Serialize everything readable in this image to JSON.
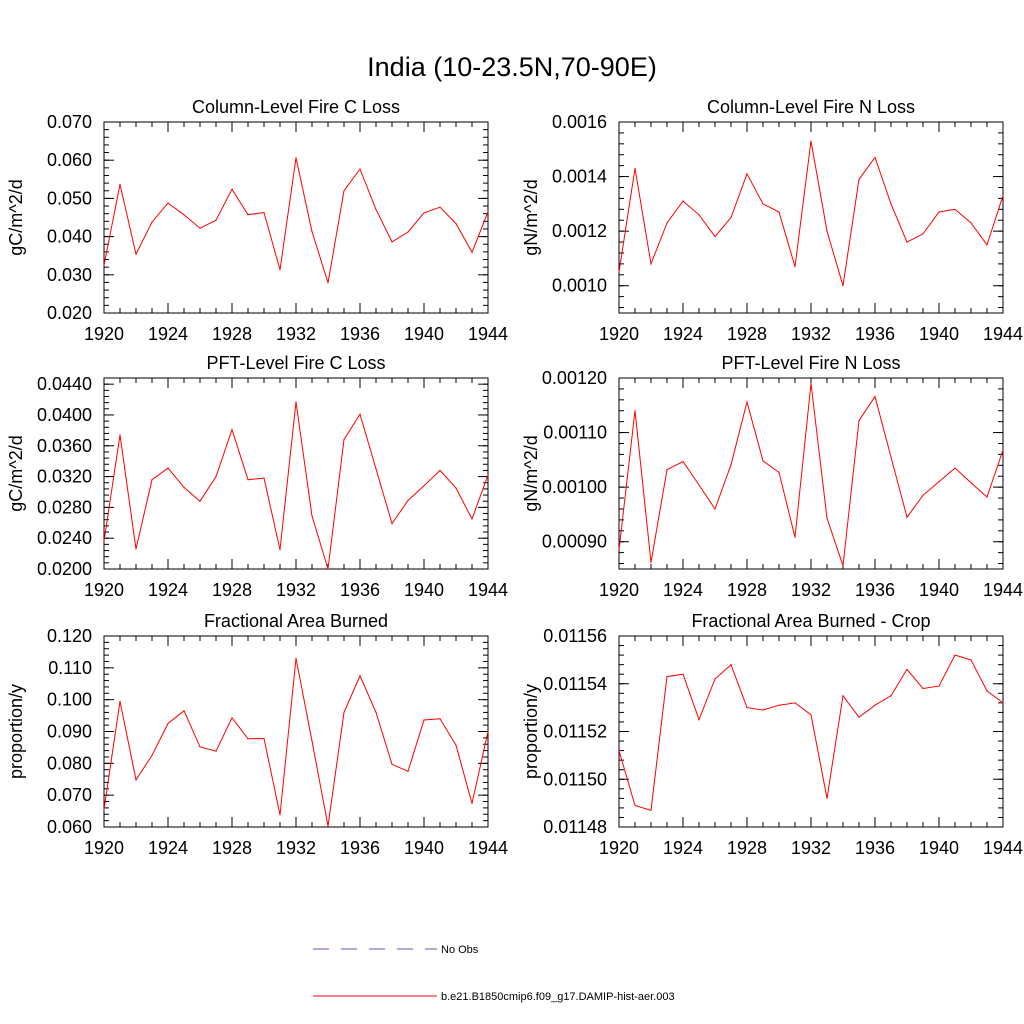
{
  "title": "India (10-23.5N,70-90E)",
  "colors": {
    "model": "#ff0000",
    "obs": "#5a5ab8",
    "frame": "#000000"
  },
  "legend": {
    "obs_label": "No Obs",
    "model_label": "b.e21.B1850cmip6.f09_g17.DAMIP-hist-aer.003"
  },
  "chart_data": [
    {
      "type": "line",
      "title": "Column-Level Fire C Loss",
      "ylabel": "gC/m^2/d",
      "xlim": [
        1920,
        1944
      ],
      "ylim": [
        0.02,
        0.07
      ],
      "xticks": [
        1920,
        1924,
        1928,
        1932,
        1936,
        1940,
        1944
      ],
      "yticks": [
        0.02,
        0.03,
        0.04,
        0.05,
        0.06,
        0.07
      ],
      "ytick_labels": [
        "0.020",
        "0.030",
        "0.040",
        "0.050",
        "0.060",
        "0.070"
      ],
      "x": [
        1920,
        1921,
        1922,
        1923,
        1924,
        1925,
        1926,
        1927,
        1928,
        1929,
        1930,
        1931,
        1932,
        1933,
        1934,
        1935,
        1936,
        1937,
        1938,
        1939,
        1940,
        1941,
        1942,
        1943,
        1944
      ],
      "series": [
        {
          "name": "b.e21.B1850cmip6.f09_g17.DAMIP-hist-aer.003",
          "values": [
            0.0325,
            0.0537,
            0.0354,
            0.0438,
            0.0488,
            0.0457,
            0.0422,
            0.0443,
            0.0524,
            0.0457,
            0.0463,
            0.0313,
            0.0606,
            0.0413,
            0.0279,
            0.052,
            0.0577,
            0.0471,
            0.0386,
            0.0412,
            0.0462,
            0.0477,
            0.0434,
            0.0359,
            0.0465
          ]
        }
      ]
    },
    {
      "type": "line",
      "title": "Column-Level Fire N Loss",
      "ylabel": "gN/m^2/d",
      "xlim": [
        1920,
        1944
      ],
      "ylim": [
        0.0009,
        0.0016
      ],
      "xticks": [
        1920,
        1924,
        1928,
        1932,
        1936,
        1940,
        1944
      ],
      "yticks": [
        0.001,
        0.0012,
        0.0014,
        0.0016
      ],
      "ytick_labels": [
        "0.0010",
        "0.0012",
        "0.0014",
        "0.0016"
      ],
      "x": [
        1920,
        1921,
        1922,
        1923,
        1924,
        1925,
        1926,
        1927,
        1928,
        1929,
        1930,
        1931,
        1932,
        1933,
        1934,
        1935,
        1936,
        1937,
        1938,
        1939,
        1940,
        1941,
        1942,
        1943,
        1944
      ],
      "series": [
        {
          "name": "b.e21.B1850cmip6.f09_g17.DAMIP-hist-aer.003",
          "values": [
            0.00105,
            0.00143,
            0.00108,
            0.00123,
            0.00131,
            0.00126,
            0.00118,
            0.00125,
            0.00141,
            0.0013,
            0.00127,
            0.00107,
            0.00153,
            0.0012,
            0.001,
            0.00139,
            0.00147,
            0.0013,
            0.00116,
            0.00119,
            0.00127,
            0.00128,
            0.00123,
            0.00115,
            0.00133
          ]
        }
      ]
    },
    {
      "type": "line",
      "title": "PFT-Level Fire C Loss",
      "ylabel": "gC/m^2/d",
      "xlim": [
        1920,
        1944
      ],
      "ylim": [
        0.02,
        0.0448
      ],
      "xticks": [
        1920,
        1924,
        1928,
        1932,
        1936,
        1940,
        1944
      ],
      "yticks": [
        0.02,
        0.024,
        0.028,
        0.032,
        0.036,
        0.04,
        0.044
      ],
      "ytick_labels": [
        "0.0200",
        "0.0240",
        "0.0280",
        "0.0320",
        "0.0360",
        "0.0400",
        "0.0440"
      ],
      "x": [
        1920,
        1921,
        1922,
        1923,
        1924,
        1925,
        1926,
        1927,
        1928,
        1929,
        1930,
        1931,
        1932,
        1933,
        1934,
        1935,
        1936,
        1937,
        1938,
        1939,
        1940,
        1941,
        1942,
        1943,
        1944
      ],
      "series": [
        {
          "name": "b.e21.B1850cmip6.f09_g17.DAMIP-hist-aer.003",
          "values": [
            0.0236,
            0.0374,
            0.0226,
            0.0316,
            0.0331,
            0.0306,
            0.0288,
            0.032,
            0.0381,
            0.0316,
            0.0318,
            0.0225,
            0.0417,
            0.0269,
            0.02,
            0.0368,
            0.0401,
            0.033,
            0.0259,
            0.0289,
            0.0308,
            0.0328,
            0.0305,
            0.0265,
            0.0322
          ]
        }
      ]
    },
    {
      "type": "line",
      "title": "PFT-Level Fire N Loss",
      "ylabel": "gN/m^2/d",
      "xlim": [
        1920,
        1944
      ],
      "ylim": [
        0.00085,
        0.0012
      ],
      "xticks": [
        1920,
        1924,
        1928,
        1932,
        1936,
        1940,
        1944
      ],
      "yticks": [
        0.0009,
        0.001,
        0.0011,
        0.0012
      ],
      "ytick_labels": [
        "0.00090",
        "0.00100",
        "0.00110",
        "0.00120"
      ],
      "x": [
        1920,
        1921,
        1922,
        1923,
        1924,
        1925,
        1926,
        1927,
        1928,
        1929,
        1930,
        1931,
        1932,
        1933,
        1934,
        1935,
        1936,
        1937,
        1938,
        1939,
        1940,
        1941,
        1942,
        1943,
        1944
      ],
      "series": [
        {
          "name": "b.e21.B1850cmip6.f09_g17.DAMIP-hist-aer.003",
          "values": [
            0.000885,
            0.00114,
            0.000862,
            0.001032,
            0.001047,
            0.001004,
            0.00096,
            0.001041,
            0.001156,
            0.001048,
            0.001027,
            0.000908,
            0.00119,
            0.000943,
            0.000856,
            0.001122,
            0.001166,
            0.001055,
            0.000945,
            0.000985,
            0.00101,
            0.001035,
            0.001008,
            0.000982,
            0.001068
          ]
        }
      ]
    },
    {
      "type": "line",
      "title": "Fractional Area Burned",
      "ylabel": "proportion/y",
      "xlim": [
        1920,
        1944
      ],
      "ylim": [
        0.06,
        0.12
      ],
      "xticks": [
        1920,
        1924,
        1928,
        1932,
        1936,
        1940,
        1944
      ],
      "yticks": [
        0.06,
        0.07,
        0.08,
        0.09,
        0.1,
        0.11,
        0.12
      ],
      "ytick_labels": [
        "0.060",
        "0.070",
        "0.080",
        "0.090",
        "0.100",
        "0.110",
        "0.120"
      ],
      "x": [
        1920,
        1921,
        1922,
        1923,
        1924,
        1925,
        1926,
        1927,
        1928,
        1929,
        1930,
        1931,
        1932,
        1933,
        1934,
        1935,
        1936,
        1937,
        1938,
        1939,
        1940,
        1941,
        1942,
        1943,
        1944
      ],
      "series": [
        {
          "name": "b.e21.B1850cmip6.f09_g17.DAMIP-hist-aer.003",
          "values": [
            0.0655,
            0.0995,
            0.0748,
            0.0825,
            0.0925,
            0.0965,
            0.0852,
            0.0838,
            0.0943,
            0.0877,
            0.0878,
            0.0638,
            0.113,
            0.087,
            0.0603,
            0.096,
            0.1075,
            0.096,
            0.0797,
            0.0775,
            0.0936,
            0.094,
            0.0857,
            0.0674,
            0.09
          ]
        }
      ]
    },
    {
      "type": "line",
      "title": "Fractional Area Burned - Crop",
      "ylabel": "proportion/y",
      "xlim": [
        1920,
        1944
      ],
      "ylim": [
        0.01148,
        0.01156
      ],
      "xticks": [
        1920,
        1924,
        1928,
        1932,
        1936,
        1940,
        1944
      ],
      "yticks": [
        0.01148,
        0.0115,
        0.01152,
        0.01154,
        0.01156
      ],
      "ytick_labels": [
        "0.01148",
        "0.01150",
        "0.01152",
        "0.01154",
        "0.01156"
      ],
      "x": [
        1920,
        1921,
        1922,
        1923,
        1924,
        1925,
        1926,
        1927,
        1928,
        1929,
        1930,
        1931,
        1932,
        1933,
        1934,
        1935,
        1936,
        1937,
        1938,
        1939,
        1940,
        1941,
        1942,
        1943,
        1944
      ],
      "series": [
        {
          "name": "b.e21.B1850cmip6.f09_g17.DAMIP-hist-aer.003",
          "values": [
            0.011512,
            0.011489,
            0.011487,
            0.011543,
            0.011544,
            0.011525,
            0.011542,
            0.011548,
            0.01153,
            0.011529,
            0.011531,
            0.011532,
            0.011527,
            0.011492,
            0.011535,
            0.011526,
            0.011531,
            0.011535,
            0.011546,
            0.011538,
            0.011539,
            0.011552,
            0.01155,
            0.011537,
            0.011532
          ]
        }
      ]
    }
  ]
}
